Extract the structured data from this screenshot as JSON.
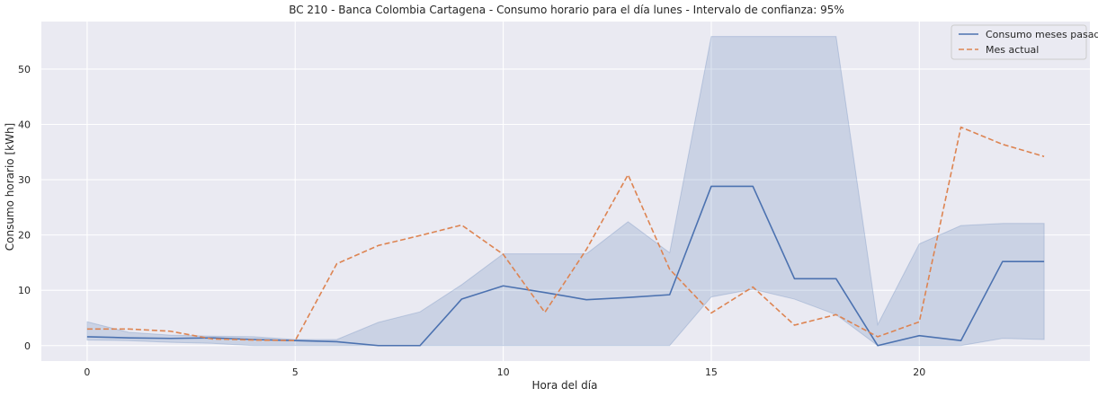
{
  "chart_data": {
    "type": "line",
    "title": "BC 210 - Banca Colombia Cartagena - Consumo horario para el día lunes - Intervalo de confianza: 95%",
    "xlabel": "Hora del día",
    "ylabel": "Consumo horario [kWh]",
    "xlim": [
      -1.1,
      24.1
    ],
    "ylim": [
      -2.8,
      58.6
    ],
    "xticks": [
      0,
      5,
      10,
      15,
      20
    ],
    "yticks": [
      0,
      10,
      20,
      30,
      40,
      50
    ],
    "grid": true,
    "legend_position": "top-right",
    "x": [
      0,
      1,
      2,
      3,
      4,
      5,
      6,
      7,
      8,
      9,
      10,
      11,
      12,
      13,
      14,
      15,
      16,
      17,
      18,
      19,
      20,
      21,
      22,
      23
    ],
    "series": [
      {
        "name": "Consumo meses pasados",
        "color": "#4c72b0",
        "style": "solid",
        "values": [
          1.6,
          1.4,
          1.3,
          1.4,
          1.1,
          0.9,
          0.7,
          0.0,
          0.0,
          8.4,
          10.8,
          9.6,
          8.3,
          8.7,
          9.2,
          28.8,
          28.8,
          12.1,
          12.1,
          0.0,
          1.8,
          0.9,
          15.2,
          15.2
        ],
        "ci_lower": [
          1.0,
          0.9,
          0.6,
          0.4,
          0.0,
          0.0,
          0.0,
          0.0,
          0.0,
          0.0,
          0.0,
          0.0,
          0.0,
          0.0,
          0.0,
          8.8,
          10.2,
          8.4,
          5.6,
          0.0,
          0.0,
          0.0,
          1.3,
          1.1
        ],
        "ci_upper": [
          4.3,
          2.4,
          1.9,
          1.7,
          1.6,
          1.1,
          1.1,
          4.2,
          6.1,
          11.0,
          16.6,
          16.6,
          16.6,
          22.4,
          16.8,
          55.9,
          55.9,
          55.9,
          55.9,
          3.8,
          18.4,
          21.7,
          22.1,
          22.1
        ]
      },
      {
        "name": "Mes actual",
        "color": "#dd8452",
        "style": "dashed",
        "values": [
          3.0,
          3.0,
          2.6,
          1.2,
          1.0,
          0.9,
          14.8,
          18.1,
          19.9,
          21.8,
          16.5,
          6.0,
          17.4,
          30.9,
          13.8,
          5.9,
          10.6,
          3.7,
          5.6,
          1.6,
          4.3,
          39.5,
          36.4,
          34.2
        ]
      }
    ]
  }
}
